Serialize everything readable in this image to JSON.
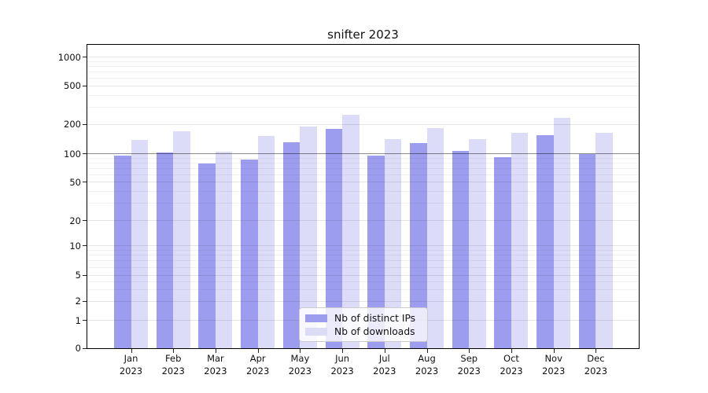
{
  "title": "snifter 2023",
  "chart_data": {
    "type": "bar",
    "title": "snifter 2023",
    "categories": [
      "Jan",
      "Feb",
      "Mar",
      "Apr",
      "May",
      "Jun",
      "Jul",
      "Aug",
      "Sep",
      "Oct",
      "Nov",
      "Dec"
    ],
    "year": "2023",
    "series": [
      {
        "name": "Nb of distinct IPs",
        "color": "#9d9df0",
        "values": [
          96,
          103,
          79,
          86,
          132,
          180,
          96,
          128,
          106,
          91,
          156,
          100
        ]
      },
      {
        "name": "Nb of downloads",
        "color": "#dcdcf9",
        "values": [
          138,
          170,
          104,
          152,
          190,
          250,
          140,
          183,
          142,
          164,
          232,
          164
        ]
      }
    ],
    "yscale": "symlog",
    "y_ticks": [
      1000,
      500,
      200,
      100,
      50,
      20,
      10,
      5,
      2,
      1,
      0
    ],
    "ylim": [
      0,
      1350
    ],
    "grid": true,
    "legend_position": "lower center",
    "colors": {
      "grid_minor": "rgba(0,0,0,0.05)",
      "grid_major": "rgba(0,0,0,0.10)",
      "grid_reference_100": "rgba(0,0,0,0.45)",
      "spine": "#000000",
      "background": "#ffffff"
    }
  }
}
